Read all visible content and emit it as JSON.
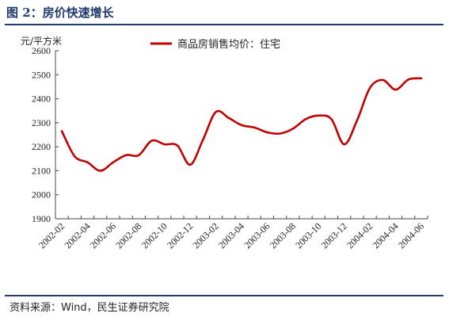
{
  "figure": {
    "title": "图 2：房价快速增长",
    "source": "资料来源：Wind，民生证券研究院"
  },
  "colors": {
    "series": "#c00000",
    "rule": "#1f3a6e",
    "axis": "#444444"
  },
  "chart_data": {
    "type": "line",
    "ylabel": "元/平方米",
    "ylim": [
      1900,
      2600
    ],
    "yticks": [
      1900,
      2000,
      2100,
      2200,
      2300,
      2400,
      2500,
      2600
    ],
    "xtick_labels": [
      "2002-02",
      "2002-04",
      "2002-06",
      "2002-08",
      "2002-10",
      "2002-12",
      "2003-02",
      "2003-04",
      "2003-06",
      "2003-08",
      "2003-10",
      "2003-12",
      "2004-02",
      "2004-04",
      "2004-06"
    ],
    "x": [
      "2002-02",
      "2002-03",
      "2002-04",
      "2002-05",
      "2002-06",
      "2002-07",
      "2002-08",
      "2002-09",
      "2002-10",
      "2002-11",
      "2002-12",
      "2003-01",
      "2003-02",
      "2003-03",
      "2003-04",
      "2003-05",
      "2003-06",
      "2003-07",
      "2003-08",
      "2003-09",
      "2003-10",
      "2003-11",
      "2003-12",
      "2004-01",
      "2004-02",
      "2004-03",
      "2004-04",
      "2004-05",
      "2004-06"
    ],
    "grid": false,
    "legend_position": "top-center",
    "series": [
      {
        "name": "商品房销售均价：住宅",
        "values": [
          2265,
          2160,
          2135,
          2100,
          2135,
          2165,
          2165,
          2225,
          2210,
          2205,
          2125,
          2230,
          2345,
          2320,
          2290,
          2280,
          2260,
          2255,
          2275,
          2315,
          2330,
          2315,
          2210,
          2310,
          2445,
          2478,
          2438,
          2480,
          2485
        ]
      }
    ]
  }
}
